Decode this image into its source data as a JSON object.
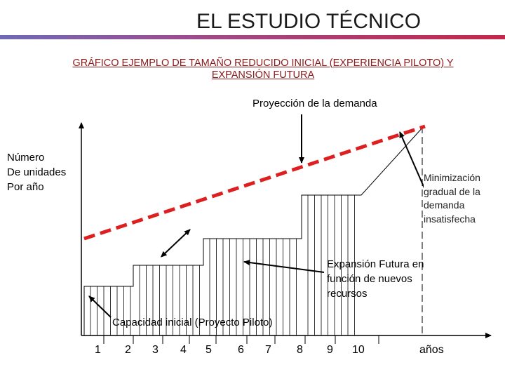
{
  "title": "EL ESTUDIO TÉCNICO",
  "subtitle_line1": "GRÁFICO EJEMPLO DE TAMAÑO REDUCIDO INICIAL (EXPERIENCIA PILOTO) Y",
  "subtitle_line2": "EXPANSIÓN FUTURA",
  "labels": {
    "demand_projection": "Proyección de la demanda",
    "y_axis_line1": "Número",
    "y_axis_line2": "De unidades",
    "y_axis_line3": "Por año",
    "minimization_line1": "Minimización",
    "minimization_line2": "gradual de la",
    "minimization_line3": "demanda",
    "minimization_line4": "insatisfecha",
    "expansion_line1": "Expansión Futura en",
    "expansion_line2": "función de nuevos",
    "expansion_line3": "recursos",
    "initial_capacity": "Capacidad inicial (Proyecto Piloto)",
    "x_axis_unit": "años"
  },
  "x_ticks": [
    "1",
    "2",
    "3",
    "4",
    "5",
    "6",
    "7",
    "8",
    "9",
    "10"
  ],
  "colors": {
    "demand_line": "#dd1f1f",
    "axis": "#000000",
    "subtitle": "#8b1a1a"
  }
}
